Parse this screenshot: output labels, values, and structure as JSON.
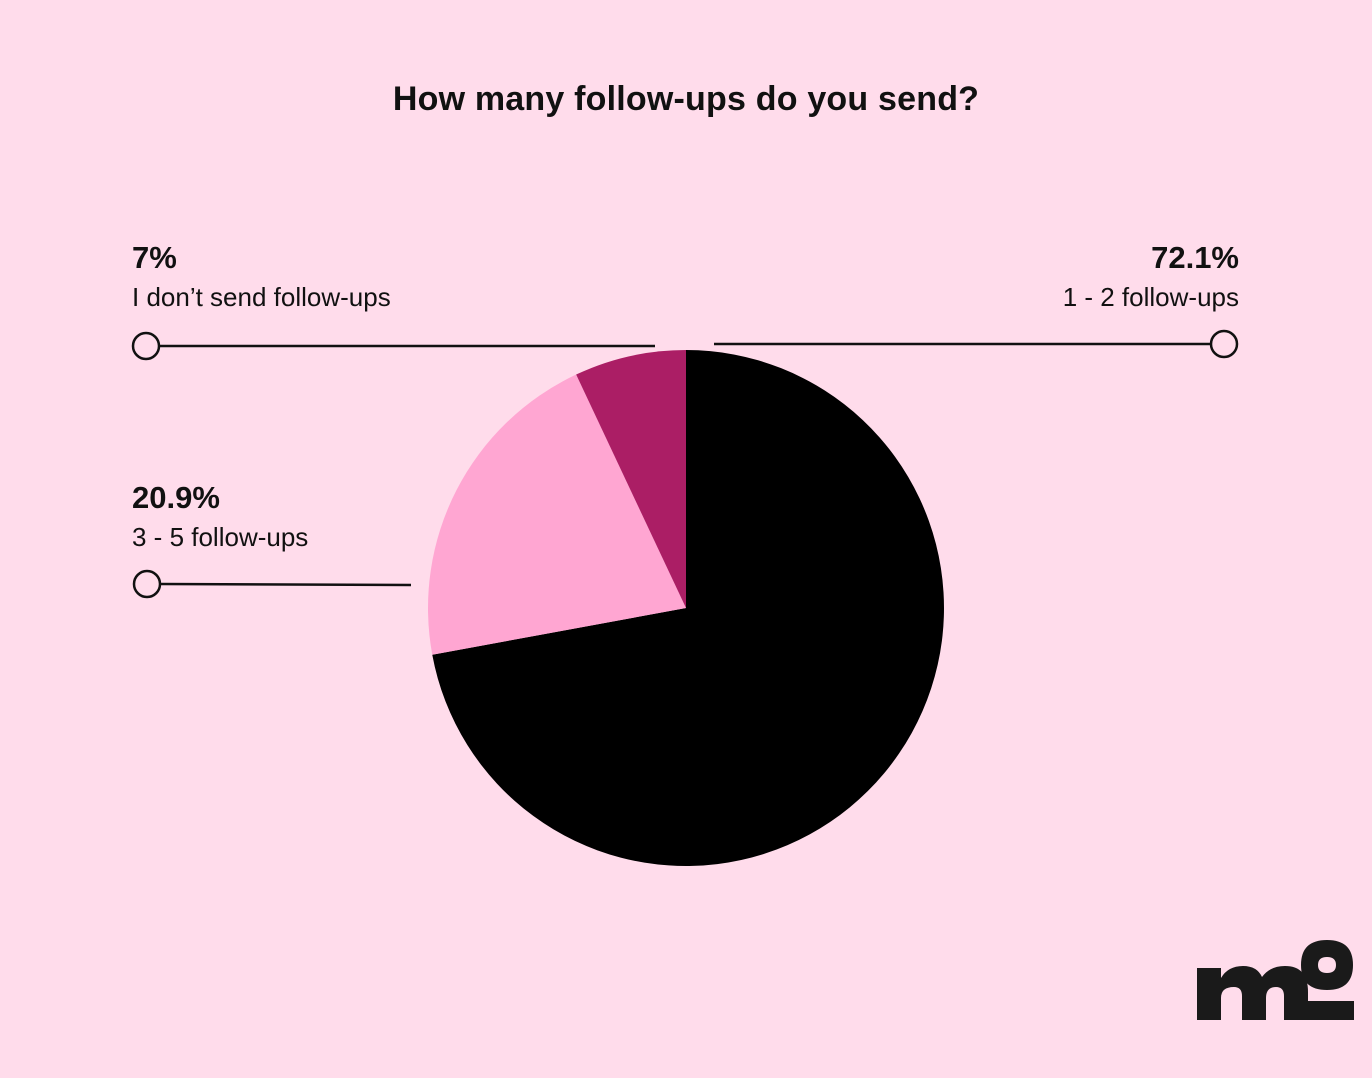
{
  "chart_data": {
    "type": "pie",
    "title": "How many follow-ups do you send?",
    "slices": [
      {
        "label": "1 - 2 follow-ups",
        "value": 72.1,
        "display": "72.1%",
        "color": "#000000"
      },
      {
        "label": "3 - 5 follow-ups",
        "value": 20.9,
        "display": "20.9%",
        "color": "#FFA6D2"
      },
      {
        "label": "I don’t send follow-ups",
        "value": 7.0,
        "display": "7%",
        "color": "#AB1E65"
      }
    ],
    "start": "12 o'clock",
    "direction": "clockwise",
    "legend": "callout labels with leader lines"
  },
  "logo": {
    "text": "mo",
    "color": "#1A1A1A"
  },
  "colors": {
    "background": "#FFDCEB",
    "line": "#111111"
  }
}
